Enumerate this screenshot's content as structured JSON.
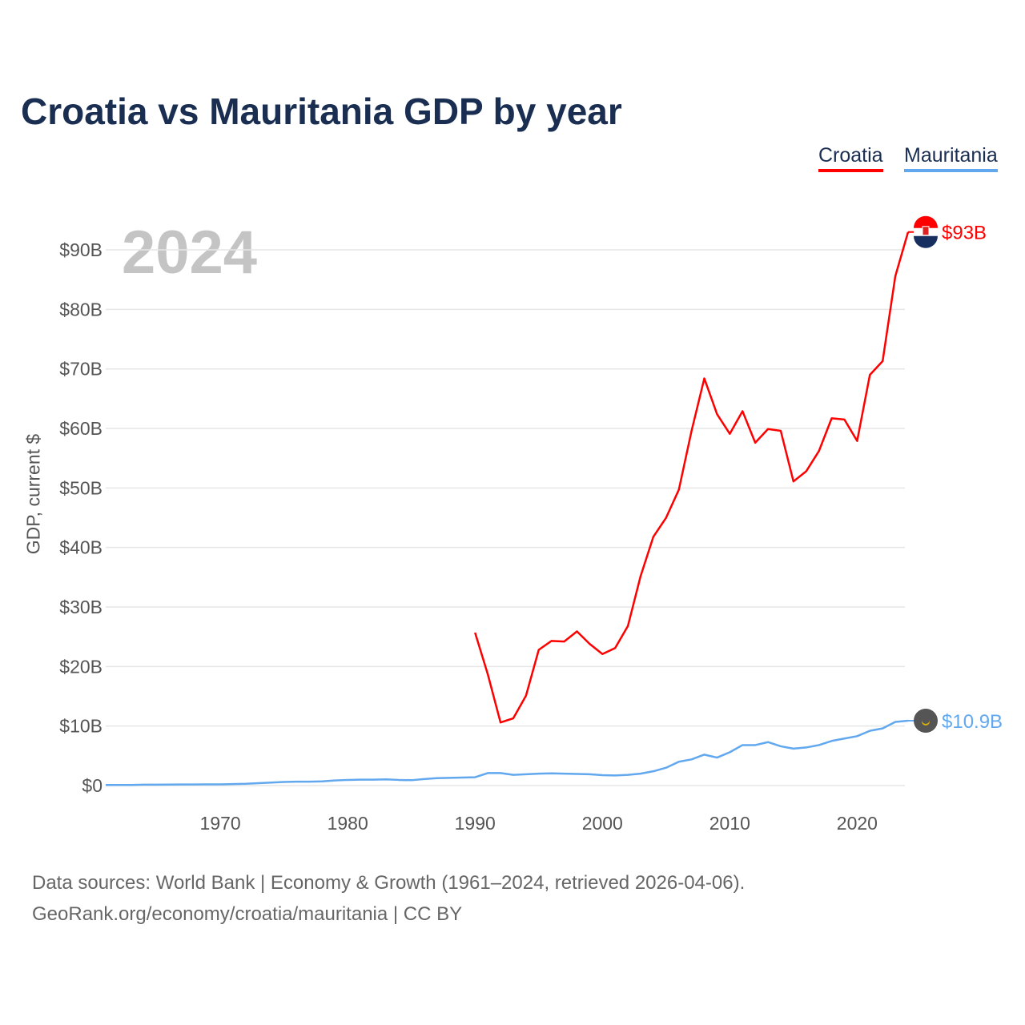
{
  "title": "Croatia vs Mauritania GDP by year",
  "year_label": "2024",
  "footer": {
    "line1": "Data sources: World Bank | Economy & Growth (1961–2024, retrieved 2026-04-06).",
    "line2": "GeoRank.org/economy/croatia/mauritania | CC BY"
  },
  "chart_data": {
    "type": "line",
    "title": "Croatia vs Mauritania GDP by year",
    "xlabel": "",
    "ylabel": "GDP, current $",
    "xlim": [
      1961,
      2024
    ],
    "ylim": [
      0,
      93
    ],
    "xticks": [
      1970,
      1980,
      1990,
      2000,
      2010,
      2020
    ],
    "yticks": [
      0,
      10,
      20,
      30,
      40,
      50,
      60,
      70,
      80,
      90
    ],
    "ytick_labels": [
      "$0",
      "$10B",
      "$20B",
      "$30B",
      "$40B",
      "$50B",
      "$60B",
      "$70B",
      "$80B",
      "$90B"
    ],
    "grid": true,
    "legend_position": "top-right",
    "series": [
      {
        "name": "Croatia",
        "color": "#ff0000",
        "end_label": "$93B",
        "flag": "croatia-flag",
        "x": [
          1990,
          1991,
          1992,
          1993,
          1994,
          1995,
          1996,
          1997,
          1998,
          1999,
          2000,
          2001,
          2002,
          2003,
          2004,
          2005,
          2006,
          2007,
          2008,
          2009,
          2010,
          2011,
          2012,
          2013,
          2014,
          2015,
          2016,
          2017,
          2018,
          2019,
          2020,
          2021,
          2022,
          2023,
          2024
        ],
        "values": [
          25.7,
          18.7,
          10.6,
          11.3,
          15.1,
          22.8,
          24.3,
          24.2,
          25.9,
          23.8,
          22.1,
          23.1,
          26.8,
          35.2,
          41.8,
          45.0,
          49.7,
          59.6,
          68.4,
          62.4,
          59.1,
          62.9,
          57.6,
          59.9,
          59.6,
          51.1,
          52.8,
          56.2,
          61.7,
          61.5,
          57.9,
          69.0,
          71.3,
          85.6,
          93.0
        ]
      },
      {
        "name": "Mauritania",
        "color": "#62a8ee",
        "end_label": "$10.9B",
        "flag": "mauritania-flag",
        "x": [
          1961,
          1962,
          1963,
          1964,
          1965,
          1966,
          1967,
          1968,
          1969,
          1970,
          1971,
          1972,
          1973,
          1974,
          1975,
          1976,
          1977,
          1978,
          1979,
          1980,
          1981,
          1982,
          1983,
          1984,
          1985,
          1986,
          1987,
          1988,
          1989,
          1990,
          1991,
          1992,
          1993,
          1994,
          1995,
          1996,
          1997,
          1998,
          1999,
          2000,
          2001,
          2002,
          2003,
          2004,
          2005,
          2006,
          2007,
          2008,
          2009,
          2010,
          2011,
          2012,
          2013,
          2014,
          2015,
          2016,
          2017,
          2018,
          2019,
          2020,
          2021,
          2022,
          2023,
          2024
        ],
        "values": [
          0.1,
          0.1,
          0.1,
          0.15,
          0.15,
          0.16,
          0.18,
          0.19,
          0.2,
          0.2,
          0.25,
          0.3,
          0.4,
          0.5,
          0.6,
          0.65,
          0.65,
          0.7,
          0.85,
          0.95,
          1.0,
          1.0,
          1.05,
          0.95,
          0.9,
          1.1,
          1.25,
          1.3,
          1.35,
          1.4,
          2.1,
          2.1,
          1.8,
          1.9,
          2.0,
          2.05,
          2.0,
          1.95,
          1.9,
          1.75,
          1.7,
          1.8,
          2.0,
          2.4,
          3.0,
          4.0,
          4.4,
          5.2,
          4.7,
          5.6,
          6.8,
          6.8,
          7.3,
          6.6,
          6.2,
          6.4,
          6.8,
          7.5,
          7.9,
          8.3,
          9.2,
          9.6,
          10.7,
          10.9
        ]
      }
    ]
  }
}
